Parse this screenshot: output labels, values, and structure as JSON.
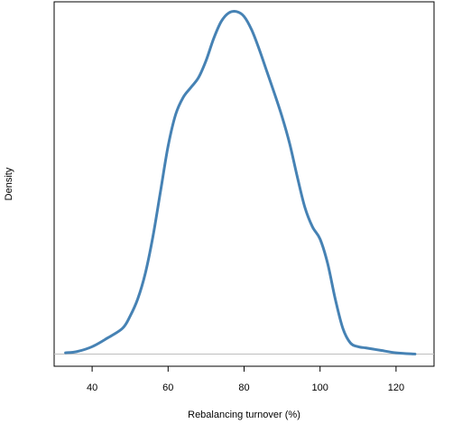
{
  "chart_data": {
    "type": "line",
    "title": "",
    "xlabel": "Rebalancing turnover (%)",
    "ylabel": "Density",
    "xlim": [
      30,
      130
    ],
    "ylim": [
      -0.001,
      0.0288
    ],
    "x_ticks": [
      40,
      60,
      80,
      100,
      120
    ],
    "y_ticks": [],
    "baseline": 0,
    "grid": false,
    "legend": "none",
    "line_color": "#4682B4",
    "baseline_color": "#BEBEBE",
    "series": [
      {
        "x": [
          33,
          36,
          40,
          44,
          48,
          50,
          52,
          54,
          56,
          58,
          60,
          62,
          64,
          66,
          68,
          70,
          72,
          74,
          76,
          78,
          80,
          82,
          84,
          86,
          88,
          90,
          92,
          94,
          96,
          98,
          100,
          102,
          104,
          106,
          108,
          110,
          112,
          114,
          116,
          120,
          125
        ],
        "y": [
          0.0001,
          0.0002,
          0.0006,
          0.0013,
          0.0021,
          0.0031,
          0.0045,
          0.0066,
          0.0096,
          0.0133,
          0.017,
          0.0196,
          0.021,
          0.0218,
          0.0226,
          0.024,
          0.0258,
          0.0272,
          0.0279,
          0.028,
          0.0276,
          0.0265,
          0.0249,
          0.0231,
          0.0213,
          0.0194,
          0.0172,
          0.0145,
          0.012,
          0.0104,
          0.0094,
          0.0074,
          0.0045,
          0.0021,
          0.0009,
          0.0006,
          0.0005,
          0.0004,
          0.0003,
          0.0001,
          0.0
        ]
      }
    ]
  }
}
